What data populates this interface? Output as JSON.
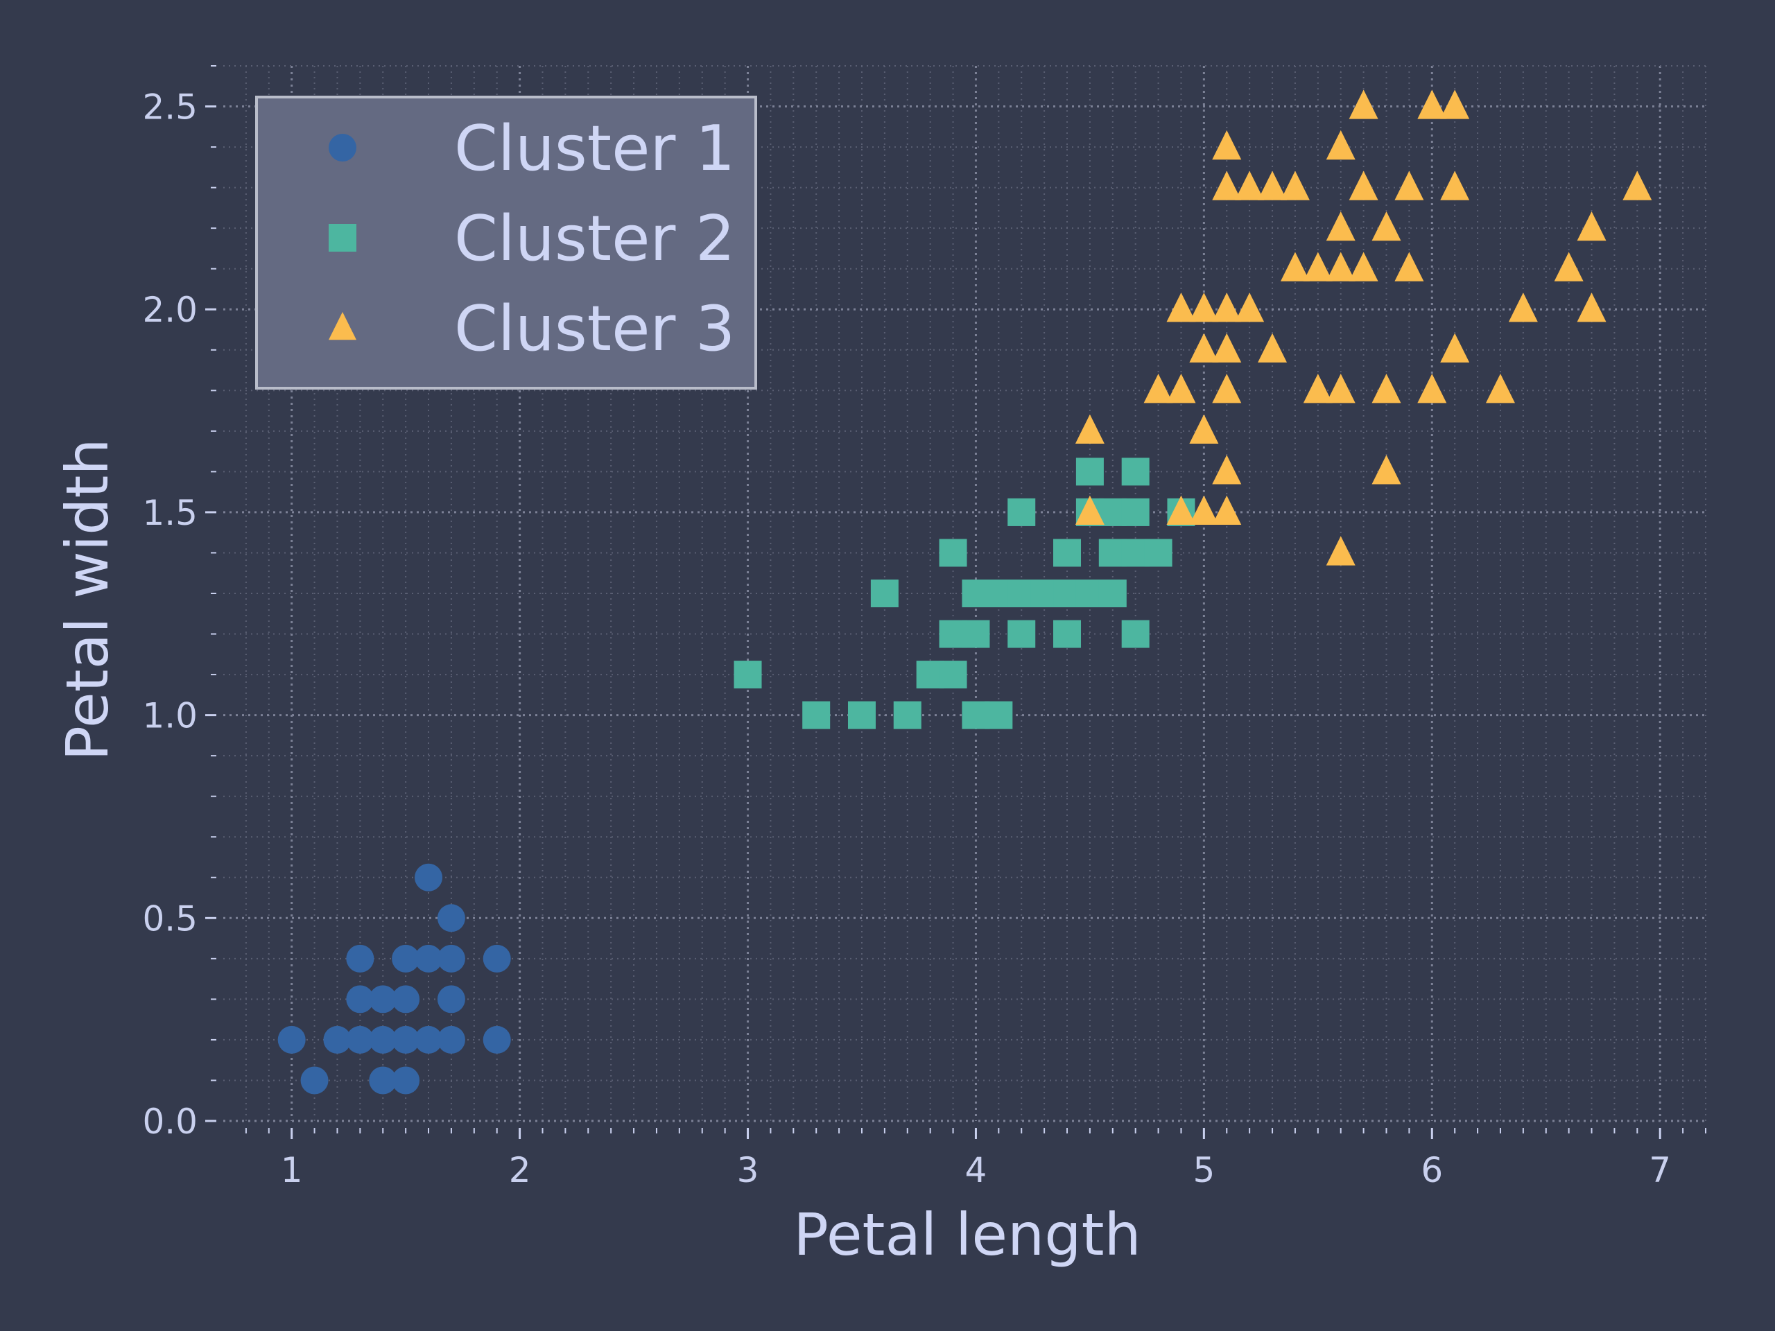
{
  "chart_data": {
    "type": "scatter",
    "xlabel": "Petal length",
    "ylabel": "Petal width",
    "xlim": [
      0.7,
      7.2
    ],
    "ylim": [
      0.0,
      2.6
    ],
    "xticks": [
      "1",
      "2",
      "3",
      "4",
      "5",
      "6",
      "7"
    ],
    "yticks": [
      "0.0",
      "0.5",
      "1.0",
      "1.5",
      "2.0",
      "2.5"
    ],
    "grid": true,
    "legend_position": "top-left",
    "background": "#343a4d",
    "series": [
      {
        "name": "Cluster 1",
        "marker": "circle",
        "color": "#3465a4",
        "points": [
          [
            1.0,
            0.2
          ],
          [
            1.1,
            0.1
          ],
          [
            1.2,
            0.2
          ],
          [
            1.3,
            0.2
          ],
          [
            1.3,
            0.3
          ],
          [
            1.3,
            0.4
          ],
          [
            1.4,
            0.1
          ],
          [
            1.4,
            0.2
          ],
          [
            1.4,
            0.3
          ],
          [
            1.5,
            0.1
          ],
          [
            1.5,
            0.2
          ],
          [
            1.5,
            0.3
          ],
          [
            1.5,
            0.4
          ],
          [
            1.6,
            0.2
          ],
          [
            1.6,
            0.4
          ],
          [
            1.6,
            0.6
          ],
          [
            1.7,
            0.2
          ],
          [
            1.7,
            0.3
          ],
          [
            1.7,
            0.4
          ],
          [
            1.7,
            0.5
          ],
          [
            1.9,
            0.2
          ],
          [
            1.9,
            0.4
          ]
        ]
      },
      {
        "name": "Cluster 2",
        "marker": "square",
        "color": "#4db6a0",
        "points": [
          [
            3.0,
            1.1
          ],
          [
            3.3,
            1.0
          ],
          [
            3.5,
            1.0
          ],
          [
            3.6,
            1.3
          ],
          [
            3.7,
            1.0
          ],
          [
            3.8,
            1.1
          ],
          [
            3.9,
            1.1
          ],
          [
            3.9,
            1.2
          ],
          [
            3.9,
            1.4
          ],
          [
            4.0,
            1.0
          ],
          [
            4.0,
            1.2
          ],
          [
            4.0,
            1.3
          ],
          [
            4.1,
            1.0
          ],
          [
            4.1,
            1.3
          ],
          [
            4.2,
            1.2
          ],
          [
            4.2,
            1.3
          ],
          [
            4.2,
            1.5
          ],
          [
            4.3,
            1.3
          ],
          [
            4.4,
            1.2
          ],
          [
            4.4,
            1.3
          ],
          [
            4.4,
            1.4
          ],
          [
            4.5,
            1.3
          ],
          [
            4.5,
            1.5
          ],
          [
            4.5,
            1.6
          ],
          [
            4.6,
            1.3
          ],
          [
            4.6,
            1.4
          ],
          [
            4.6,
            1.5
          ],
          [
            4.7,
            1.2
          ],
          [
            4.7,
            1.4
          ],
          [
            4.7,
            1.5
          ],
          [
            4.7,
            1.6
          ],
          [
            4.8,
            1.4
          ],
          [
            4.9,
            1.5
          ]
        ]
      },
      {
        "name": "Cluster 3",
        "marker": "triangle",
        "color": "#fbbc4e",
        "points": [
          [
            4.5,
            1.5
          ],
          [
            4.5,
            1.7
          ],
          [
            4.8,
            1.8
          ],
          [
            4.9,
            1.5
          ],
          [
            4.9,
            1.8
          ],
          [
            4.9,
            2.0
          ],
          [
            5.0,
            1.5
          ],
          [
            5.0,
            1.7
          ],
          [
            5.0,
            1.9
          ],
          [
            5.0,
            2.0
          ],
          [
            5.1,
            1.5
          ],
          [
            5.1,
            1.6
          ],
          [
            5.1,
            1.8
          ],
          [
            5.1,
            1.9
          ],
          [
            5.1,
            2.0
          ],
          [
            5.1,
            2.3
          ],
          [
            5.1,
            2.4
          ],
          [
            5.2,
            2.0
          ],
          [
            5.2,
            2.3
          ],
          [
            5.3,
            1.9
          ],
          [
            5.3,
            2.3
          ],
          [
            5.4,
            2.1
          ],
          [
            5.4,
            2.3
          ],
          [
            5.5,
            1.8
          ],
          [
            5.5,
            2.1
          ],
          [
            5.6,
            1.4
          ],
          [
            5.6,
            1.8
          ],
          [
            5.6,
            2.1
          ],
          [
            5.6,
            2.2
          ],
          [
            5.6,
            2.4
          ],
          [
            5.7,
            2.1
          ],
          [
            5.7,
            2.3
          ],
          [
            5.7,
            2.5
          ],
          [
            5.8,
            1.6
          ],
          [
            5.8,
            1.8
          ],
          [
            5.8,
            2.2
          ],
          [
            5.9,
            2.1
          ],
          [
            5.9,
            2.3
          ],
          [
            6.0,
            1.8
          ],
          [
            6.0,
            2.5
          ],
          [
            6.1,
            1.9
          ],
          [
            6.1,
            2.3
          ],
          [
            6.1,
            2.5
          ],
          [
            6.3,
            1.8
          ],
          [
            6.4,
            2.0
          ],
          [
            6.6,
            2.1
          ],
          [
            6.7,
            2.0
          ],
          [
            6.7,
            2.2
          ],
          [
            6.9,
            2.3
          ]
        ]
      }
    ]
  }
}
